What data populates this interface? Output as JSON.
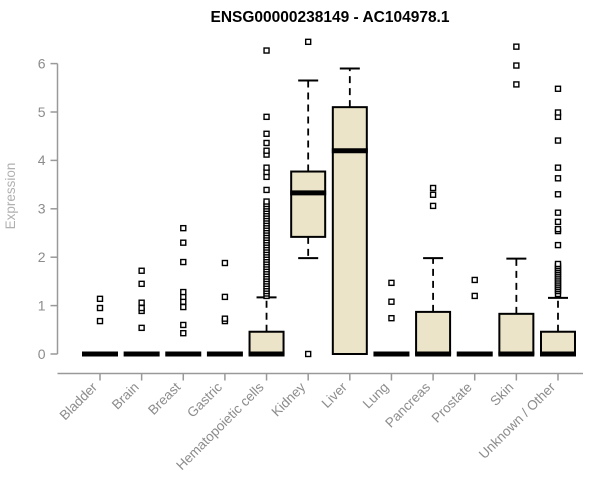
{
  "title": "ENSG00000238149 - AC104978.1",
  "y_axis": {
    "label": "Expression",
    "ticks": [
      0,
      1,
      2,
      3,
      4,
      5,
      6
    ]
  },
  "colors": {
    "title": "#000000",
    "axis_line": "#999999",
    "tick_label": "#8c8c8c",
    "axis_title": "#b0b0b0",
    "box_fill": "#ebe4c8",
    "box_border": "#000000",
    "median": "#000000",
    "whisker": "#000000",
    "outlier_stroke": "#000000",
    "outlier_fill": "#ffffff",
    "background": "#ffffff"
  },
  "chart_data": {
    "type": "boxplot",
    "title": "ENSG00000238149 - AC104978.1",
    "xlabel": "",
    "ylabel": "Expression",
    "ylim": [
      0,
      6.5
    ],
    "y_ticks": [
      0,
      1,
      2,
      3,
      4,
      5,
      6
    ],
    "grid": false,
    "legend": false,
    "categories": [
      "Bladder",
      "Brain",
      "Breast",
      "Gastric",
      "Hematopoietic cells",
      "Kidney",
      "Liver",
      "Lung",
      "Pancreas",
      "Prostate",
      "Skin",
      "Unknown / Other"
    ],
    "series": [
      {
        "name": "Bladder",
        "q1": 0,
        "median": 0,
        "q3": 0,
        "whisker_low": 0,
        "whisker_high": 0,
        "outliers": [
          0.68,
          0.95,
          1.14
        ]
      },
      {
        "name": "Brain",
        "q1": 0,
        "median": 0,
        "q3": 0,
        "whisker_low": 0,
        "whisker_high": 0,
        "outliers": [
          0.54,
          0.89,
          0.95,
          1.06,
          1.45,
          1.72
        ]
      },
      {
        "name": "Breast",
        "q1": 0,
        "median": 0,
        "q3": 0,
        "whisker_low": 0,
        "whisker_high": 0,
        "outliers": [
          0.43,
          0.6,
          0.97,
          1.08,
          1.18,
          1.28,
          1.9,
          2.3,
          2.6
        ]
      },
      {
        "name": "Gastric",
        "q1": 0,
        "median": 0,
        "q3": 0,
        "whisker_low": 0,
        "whisker_high": 0,
        "outliers": [
          0.68,
          0.73,
          1.18,
          1.88
        ]
      },
      {
        "name": "Hematopoietic cells",
        "q1": 0,
        "median": 0,
        "q3": 0.46,
        "whisker_low": 0,
        "whisker_high": 1.17,
        "outliers": [
          1.2,
          1.25,
          1.3,
          1.35,
          1.4,
          1.45,
          1.5,
          1.55,
          1.6,
          1.65,
          1.7,
          1.75,
          1.8,
          1.85,
          1.9,
          1.95,
          2.0,
          2.05,
          2.1,
          2.15,
          2.2,
          2.25,
          2.3,
          2.35,
          2.4,
          2.45,
          2.5,
          2.55,
          2.6,
          2.65,
          2.7,
          2.75,
          2.8,
          2.85,
          2.9,
          2.95,
          3.0,
          3.05,
          3.1,
          3.15,
          3.39,
          3.66,
          3.76,
          3.85,
          4.12,
          4.2,
          4.36,
          4.55,
          4.9,
          6.27
        ]
      },
      {
        "name": "Kidney",
        "q1": 2.42,
        "median": 3.33,
        "q3": 3.77,
        "whisker_low": 1.98,
        "whisker_high": 5.65,
        "outliers": [
          0,
          6.45
        ]
      },
      {
        "name": "Liver",
        "q1": 0,
        "median": 4.2,
        "q3": 5.1,
        "whisker_low": 0,
        "whisker_high": 5.9,
        "outliers": []
      },
      {
        "name": "Lung",
        "q1": 0,
        "median": 0,
        "q3": 0,
        "whisker_low": 0,
        "whisker_high": 0,
        "outliers": [
          0.74,
          1.08,
          1.47
        ]
      },
      {
        "name": "Pancreas",
        "q1": 0,
        "median": 0,
        "q3": 0.87,
        "whisker_low": 0,
        "whisker_high": 1.98,
        "outliers": [
          3.06,
          3.29,
          3.43
        ]
      },
      {
        "name": "Prostate",
        "q1": 0,
        "median": 0,
        "q3": 0,
        "whisker_low": 0,
        "whisker_high": 0,
        "outliers": [
          1.2,
          1.53
        ]
      },
      {
        "name": "Skin",
        "q1": 0,
        "median": 0,
        "q3": 0.83,
        "whisker_low": 0,
        "whisker_high": 1.97,
        "outliers": [
          5.57,
          5.96,
          6.35
        ]
      },
      {
        "name": "Unknown / Other",
        "q1": 0,
        "median": 0,
        "q3": 0.46,
        "whisker_low": 0,
        "whisker_high": 1.16,
        "outliers": [
          1.24,
          1.3,
          1.34,
          1.38,
          1.42,
          1.46,
          1.5,
          1.54,
          1.58,
          1.62,
          1.66,
          1.7,
          1.74,
          1.78,
          1.82,
          1.86,
          2.25,
          2.54,
          2.58,
          2.73,
          2.92,
          3.3,
          3.63,
          3.85,
          4.41,
          4.9,
          4.99,
          5.48
        ]
      }
    ]
  }
}
